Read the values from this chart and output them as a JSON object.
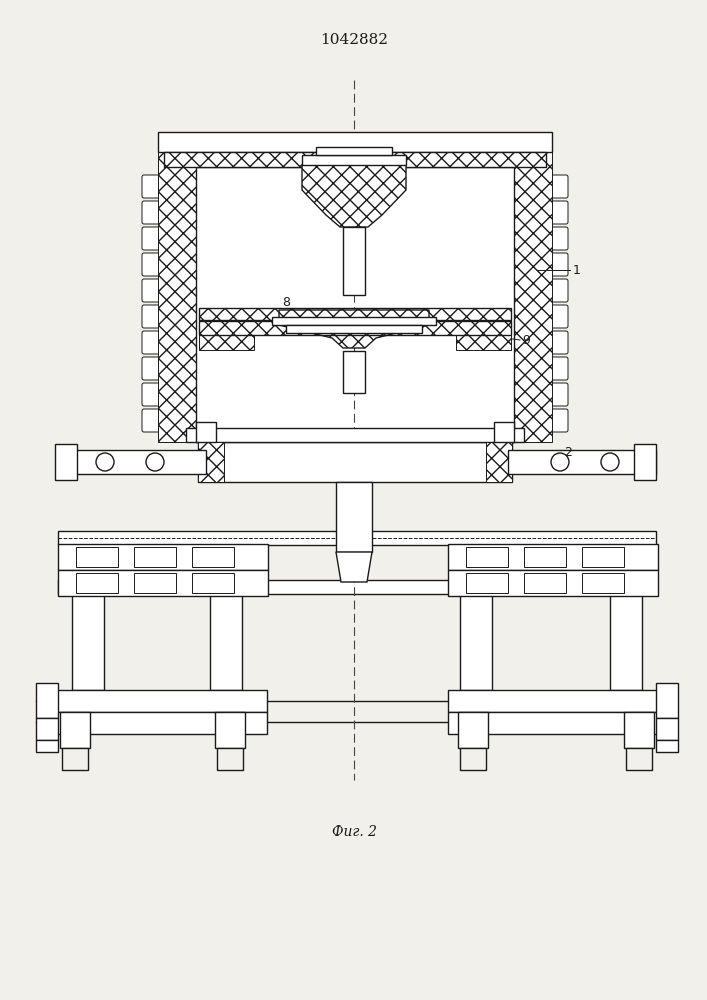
{
  "title": "1042882",
  "caption": "Фиг. 2",
  "bg_color": "#f2f0eb",
  "line_color": "#1a1a1a",
  "label_1": "1",
  "label_2": "2",
  "label_8": "8",
  "label_9": "9",
  "title_fontsize": 11,
  "caption_fontsize": 10,
  "label_fontsize": 9
}
